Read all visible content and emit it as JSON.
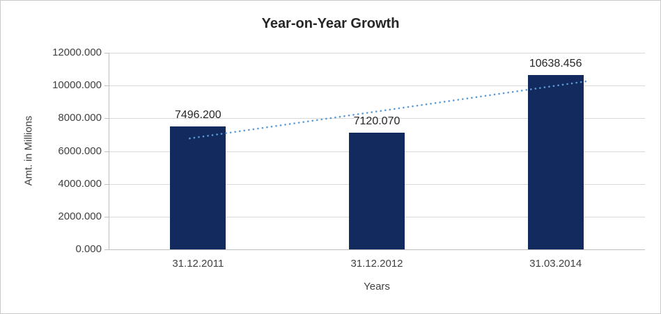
{
  "chart_data": {
    "type": "bar",
    "title": "Year-on-Year Growth",
    "xlabel": "Years",
    "ylabel": "Amt. in Millions",
    "categories": [
      "31.12.2011",
      "31.12.2012",
      "31.03.2014"
    ],
    "values": [
      7496.2,
      7120.07,
      10638.456
    ],
    "data_labels": [
      "7496.200",
      "7120.070",
      "10638.456"
    ],
    "ylim": [
      0,
      12000
    ],
    "yticks": [
      0,
      2000,
      4000,
      6000,
      8000,
      10000,
      12000
    ],
    "ytick_labels": [
      "0.000",
      "2000.000",
      "4000.000",
      "6000.000",
      "8000.000",
      "10000.000",
      "12000.000"
    ],
    "grid": true,
    "legend": "none",
    "bar_color": "#122A5E",
    "axis_color": "#bfbfbf",
    "gridline_color": "#d9d9d9",
    "trendline": {
      "type": "linear",
      "style": "dotted",
      "color": "#5B9BD5"
    }
  }
}
